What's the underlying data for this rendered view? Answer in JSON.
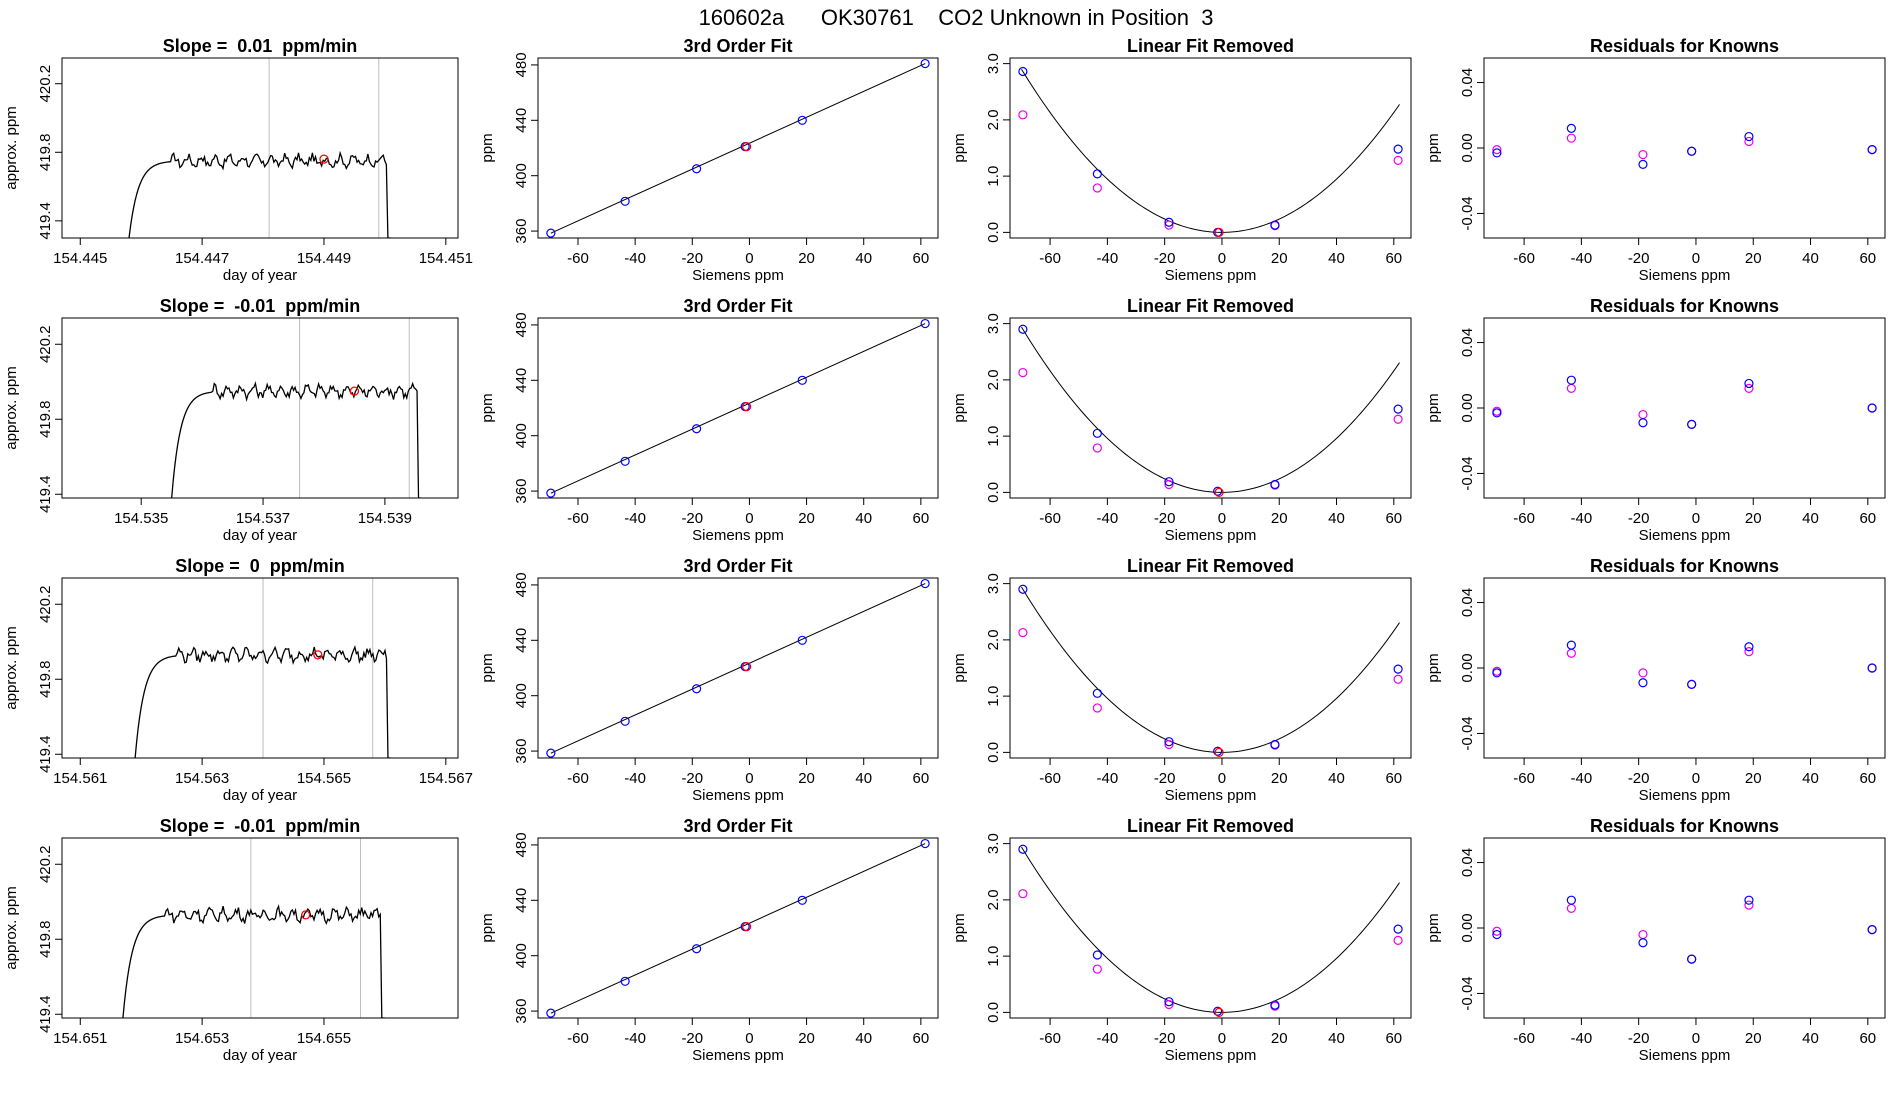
{
  "title": "160602a      OK30761    CO2 Unknown in Position  3",
  "colors": {
    "trace": "#000000",
    "gridline": "#bebebe",
    "marker_red": "#ff0000",
    "known_blue": "#0000ff",
    "known_magenta": "#ee00ee",
    "fit_line": "#000000"
  },
  "chart_data": [
    {
      "type": "line",
      "row": 1,
      "col": 1,
      "title": "Slope =  0.01  ppm/min",
      "xlabel": "day of year",
      "ylabel": "approx. ppm",
      "xlim": [
        154.4447,
        154.4512
      ],
      "ylim": [
        419.3,
        420.35
      ],
      "xticks": [
        154.445,
        154.447,
        154.449,
        154.451
      ],
      "xtick_labels": [
        "154.445",
        "154.447",
        "154.449",
        "154.451"
      ],
      "yticks": [
        419.4,
        419.8,
        420.2
      ],
      "ytick_labels": [
        "419.4",
        "419.8",
        "420.2"
      ],
      "vlines": [
        154.4481,
        154.4499
      ],
      "trace": {
        "start": 154.4458,
        "end": 154.4501,
        "plateau": 419.75,
        "floor": 419.3
      },
      "marker": {
        "x": 154.449,
        "y": 419.76
      }
    },
    {
      "type": "line",
      "row": 2,
      "col": 1,
      "title": "Slope =  -0.01  ppm/min",
      "xlabel": "day of year",
      "ylabel": "approx. ppm",
      "xlim": [
        154.5337,
        154.5402
      ],
      "ylim": [
        419.38,
        420.34
      ],
      "xticks": [
        154.535,
        154.537,
        154.539
      ],
      "xtick_labels": [
        "154.535",
        "154.537",
        "154.539"
      ],
      "yticks": [
        419.4,
        419.8,
        420.2
      ],
      "ytick_labels": [
        "419.4",
        "419.8",
        "420.2"
      ],
      "vlines": [
        154.5376,
        154.5394
      ],
      "trace": {
        "start": 154.5355,
        "end": 154.5396,
        "plateau": 419.95,
        "floor": 419.38
      },
      "marker": {
        "x": 154.5385,
        "y": 419.95
      }
    },
    {
      "type": "line",
      "row": 3,
      "col": 1,
      "title": "Slope =  0  ppm/min",
      "xlabel": "day of year",
      "ylabel": "approx. ppm",
      "xlim": [
        154.5607,
        154.5672
      ],
      "ylim": [
        419.38,
        420.34
      ],
      "xticks": [
        154.561,
        154.563,
        154.565,
        154.567
      ],
      "xtick_labels": [
        "154.561",
        "154.563",
        "154.565",
        "154.567"
      ],
      "yticks": [
        419.4,
        419.8,
        420.2
      ],
      "ytick_labels": [
        "419.4",
        "419.8",
        "420.2"
      ],
      "vlines": [
        154.564,
        154.5658
      ],
      "trace": {
        "start": 154.5619,
        "end": 154.5661,
        "plateau": 419.93,
        "floor": 419.38
      },
      "marker": {
        "x": 154.5649,
        "y": 419.93
      }
    },
    {
      "type": "line",
      "row": 4,
      "col": 1,
      "title": "Slope =  -0.01  ppm/min",
      "xlabel": "day of year",
      "ylabel": "approx. ppm",
      "xlim": [
        154.6507,
        154.6572
      ],
      "ylim": [
        419.38,
        420.34
      ],
      "xticks": [
        154.651,
        154.653,
        154.655
      ],
      "xtick_labels": [
        "154.651",
        "154.653",
        "154.655"
      ],
      "yticks": [
        419.4,
        419.8,
        420.2
      ],
      "ytick_labels": [
        "419.4",
        "419.8",
        "420.2"
      ],
      "vlines": [
        154.6538,
        154.6556
      ],
      "trace": {
        "start": 154.6517,
        "end": 154.656,
        "plateau": 419.93,
        "floor": 419.38
      },
      "marker": {
        "x": 154.6547,
        "y": 419.93
      }
    },
    {
      "type": "scatter",
      "row": 1,
      "col": 2,
      "title": "3rd Order Fit",
      "xlabel": "Siemens ppm",
      "ylabel": "ppm",
      "xlim": [
        -74,
        66
      ],
      "ylim": [
        355,
        485
      ],
      "xticks": [
        -60,
        -40,
        -20,
        0,
        20,
        40,
        60
      ],
      "xtick_labels": [
        "-60",
        "-40",
        "-20",
        "0",
        "20",
        "40",
        "60"
      ],
      "yticks": [
        360,
        400,
        440,
        480
      ],
      "ytick_labels": [
        "360",
        "400",
        "440",
        "480"
      ],
      "fit_line": {
        "from": [
          -69.5,
          358.5
        ],
        "to": [
          61.5,
          481.0
        ]
      },
      "known": {
        "x": [
          -69.5,
          -43.5,
          -18.5,
          -1.5,
          18.5,
          61.5
        ],
        "y": [
          358.5,
          381.5,
          405.0,
          421.0,
          440.0,
          481.0
        ]
      },
      "unknown": {
        "x": [
          -1.0
        ],
        "y": [
          421.0
        ]
      }
    },
    {
      "type": "scatter",
      "row": 2,
      "col": 2,
      "title": "3rd Order Fit",
      "xlabel": "Siemens ppm",
      "ylabel": "ppm",
      "xlim": [
        -74,
        66
      ],
      "ylim": [
        355,
        485
      ],
      "xticks": [
        -60,
        -40,
        -20,
        0,
        20,
        40,
        60
      ],
      "xtick_labels": [
        "-60",
        "-40",
        "-20",
        "0",
        "20",
        "40",
        "60"
      ],
      "yticks": [
        360,
        400,
        440,
        480
      ],
      "ytick_labels": [
        "360",
        "400",
        "440",
        "480"
      ],
      "fit_line": {
        "from": [
          -69.5,
          358.5
        ],
        "to": [
          61.5,
          481.0
        ]
      },
      "known": {
        "x": [
          -69.5,
          -43.5,
          -18.5,
          -1.5,
          18.5,
          61.5
        ],
        "y": [
          358.5,
          381.5,
          405.0,
          421.0,
          440.0,
          481.0
        ]
      },
      "unknown": {
        "x": [
          -1.0
        ],
        "y": [
          421.0
        ]
      }
    },
    {
      "type": "scatter",
      "row": 3,
      "col": 2,
      "title": "3rd Order Fit",
      "xlabel": "Siemens ppm",
      "ylabel": "ppm",
      "xlim": [
        -74,
        66
      ],
      "ylim": [
        355,
        485
      ],
      "xticks": [
        -60,
        -40,
        -20,
        0,
        20,
        40,
        60
      ],
      "xtick_labels": [
        "-60",
        "-40",
        "-20",
        "0",
        "20",
        "40",
        "60"
      ],
      "yticks": [
        360,
        400,
        440,
        480
      ],
      "ytick_labels": [
        "360",
        "400",
        "440",
        "480"
      ],
      "fit_line": {
        "from": [
          -69.5,
          358.5
        ],
        "to": [
          61.5,
          481.0
        ]
      },
      "known": {
        "x": [
          -69.5,
          -43.5,
          -18.5,
          -1.5,
          18.5,
          61.5
        ],
        "y": [
          358.5,
          381.5,
          405.0,
          421.0,
          440.0,
          481.0
        ]
      },
      "unknown": {
        "x": [
          -1.0
        ],
        "y": [
          421.0
        ]
      }
    },
    {
      "type": "scatter",
      "row": 4,
      "col": 2,
      "title": "3rd Order Fit",
      "xlabel": "Siemens ppm",
      "ylabel": "ppm",
      "xlim": [
        -74,
        66
      ],
      "ylim": [
        355,
        485
      ],
      "xticks": [
        -60,
        -40,
        -20,
        0,
        20,
        40,
        60
      ],
      "xtick_labels": [
        "-60",
        "-40",
        "-20",
        "0",
        "20",
        "40",
        "60"
      ],
      "yticks": [
        360,
        400,
        440,
        480
      ],
      "ytick_labels": [
        "360",
        "400",
        "440",
        "480"
      ],
      "fit_line": {
        "from": [
          -69.5,
          358.5
        ],
        "to": [
          61.5,
          481.0
        ]
      },
      "known": {
        "x": [
          -69.5,
          -43.5,
          -18.5,
          -1.5,
          18.5,
          61.5
        ],
        "y": [
          358.5,
          381.5,
          405.0,
          421.0,
          440.0,
          481.0
        ]
      },
      "unknown": {
        "x": [
          -1.0
        ],
        "y": [
          421.0
        ]
      }
    },
    {
      "type": "scatter",
      "row": 1,
      "col": 3,
      "title": "Linear Fit Removed",
      "xlabel": "Siemens ppm",
      "ylabel": "ppm",
      "xlim": [
        -74,
        66
      ],
      "ylim": [
        -0.1,
        3.1
      ],
      "xticks": [
        -60,
        -40,
        -20,
        0,
        20,
        40,
        60
      ],
      "xtick_labels": [
        "-60",
        "-40",
        "-20",
        "0",
        "20",
        "40",
        "60"
      ],
      "yticks": [
        0,
        1,
        2,
        3
      ],
      "ytick_labels": [
        "0.0",
        "1.0",
        "2.0",
        "3.0"
      ],
      "curve": {
        "a": 0.000592,
        "b": 0.0,
        "c": 0.0
      },
      "known": {
        "x": [
          -69.5,
          -43.5,
          -18.5,
          -1.5,
          18.5,
          61.5
        ],
        "y": [
          2.86,
          1.04,
          0.18,
          0.0,
          0.13,
          1.48
        ]
      },
      "magenta": {
        "x": [
          -69.5,
          -43.5,
          -18.5,
          18.5,
          61.5
        ],
        "y": [
          2.09,
          0.79,
          0.13,
          0.12,
          1.28
        ]
      },
      "unknown": {
        "x": [
          -1.0
        ],
        "y": [
          0.0
        ]
      }
    },
    {
      "type": "scatter",
      "row": 2,
      "col": 3,
      "title": "Linear Fit Removed",
      "xlabel": "Siemens ppm",
      "ylabel": "ppm",
      "xlim": [
        -74,
        66
      ],
      "ylim": [
        -0.1,
        3.1
      ],
      "xticks": [
        -60,
        -40,
        -20,
        0,
        20,
        40,
        60
      ],
      "xtick_labels": [
        "-60",
        "-40",
        "-20",
        "0",
        "20",
        "40",
        "60"
      ],
      "yticks": [
        0,
        1,
        2,
        3
      ],
      "ytick_labels": [
        "0.0",
        "1.0",
        "2.0",
        "3.0"
      ],
      "curve": {
        "a": 0.0006,
        "b": 0.0,
        "c": 0.0
      },
      "known": {
        "x": [
          -69.5,
          -43.5,
          -18.5,
          -1.5,
          18.5,
          61.5
        ],
        "y": [
          2.9,
          1.05,
          0.19,
          0.02,
          0.14,
          1.48
        ]
      },
      "magenta": {
        "x": [
          -69.5,
          -43.5,
          -18.5,
          18.5,
          61.5
        ],
        "y": [
          2.13,
          0.79,
          0.14,
          0.13,
          1.3
        ]
      },
      "unknown": {
        "x": [
          -1.0
        ],
        "y": [
          0.0
        ]
      }
    },
    {
      "type": "scatter",
      "row": 3,
      "col": 3,
      "title": "Linear Fit Removed",
      "xlabel": "Siemens ppm",
      "ylabel": "ppm",
      "xlim": [
        -74,
        66
      ],
      "ylim": [
        -0.1,
        3.1
      ],
      "xticks": [
        -60,
        -40,
        -20,
        0,
        20,
        40,
        60
      ],
      "xtick_labels": [
        "-60",
        "-40",
        "-20",
        "0",
        "20",
        "40",
        "60"
      ],
      "yticks": [
        0,
        1,
        2,
        3
      ],
      "ytick_labels": [
        "0.0",
        "1.0",
        "2.0",
        "3.0"
      ],
      "curve": {
        "a": 0.0006,
        "b": 0.0,
        "c": 0.0
      },
      "known": {
        "x": [
          -69.5,
          -43.5,
          -18.5,
          -1.5,
          18.5,
          61.5
        ],
        "y": [
          2.9,
          1.05,
          0.19,
          0.02,
          0.14,
          1.48
        ]
      },
      "magenta": {
        "x": [
          -69.5,
          -43.5,
          -18.5,
          18.5,
          61.5
        ],
        "y": [
          2.13,
          0.79,
          0.14,
          0.13,
          1.3
        ]
      },
      "unknown": {
        "x": [
          -1.0
        ],
        "y": [
          0.0
        ]
      }
    },
    {
      "type": "scatter",
      "row": 4,
      "col": 3,
      "title": "Linear Fit Removed",
      "xlabel": "Siemens ppm",
      "ylabel": "ppm",
      "xlim": [
        -74,
        66
      ],
      "ylim": [
        -0.1,
        3.1
      ],
      "xticks": [
        -60,
        -40,
        -20,
        0,
        20,
        40,
        60
      ],
      "xtick_labels": [
        "-60",
        "-40",
        "-20",
        "0",
        "20",
        "40",
        "60"
      ],
      "yticks": [
        0,
        1,
        2,
        3
      ],
      "ytick_labels": [
        "0.0",
        "1.0",
        "2.0",
        "3.0"
      ],
      "curve": {
        "a": 0.0006,
        "b": 0.0,
        "c": 0.0
      },
      "known": {
        "x": [
          -69.5,
          -43.5,
          -18.5,
          -1.5,
          18.5,
          61.5
        ],
        "y": [
          2.9,
          1.02,
          0.19,
          0.02,
          0.13,
          1.48
        ]
      },
      "magenta": {
        "x": [
          -69.5,
          -43.5,
          -18.5,
          18.5,
          61.5
        ],
        "y": [
          2.11,
          0.77,
          0.14,
          0.11,
          1.28
        ]
      },
      "unknown": {
        "x": [
          -1.0
        ],
        "y": [
          0.0
        ]
      }
    },
    {
      "type": "scatter",
      "row": 1,
      "col": 4,
      "title": "Residuals for Knowns",
      "xlabel": "Siemens ppm",
      "ylabel": "ppm",
      "xlim": [
        -74,
        66
      ],
      "ylim": [
        -0.055,
        0.055
      ],
      "xticks": [
        -60,
        -40,
        -20,
        0,
        20,
        40,
        60
      ],
      "xtick_labels": [
        "-60",
        "-40",
        "-20",
        "0",
        "20",
        "40",
        "60"
      ],
      "yticks": [
        -0.04,
        0.0,
        0.04
      ],
      "ytick_labels": [
        "-0.04",
        "0.00",
        "0.04"
      ],
      "known": {
        "x": [
          -69.5,
          -43.5,
          -18.5,
          -1.5,
          18.5,
          61.5
        ],
        "y": [
          -0.003,
          0.012,
          -0.01,
          -0.002,
          0.007,
          -0.001
        ]
      },
      "magenta": {
        "x": [
          -69.5,
          -43.5,
          -18.5,
          -1.5,
          18.5,
          61.5
        ],
        "y": [
          -0.001,
          0.006,
          -0.004,
          -0.002,
          0.004,
          -0.001
        ]
      }
    },
    {
      "type": "scatter",
      "row": 2,
      "col": 4,
      "title": "Residuals for Knowns",
      "xlabel": "Siemens ppm",
      "ylabel": "ppm",
      "xlim": [
        -74,
        66
      ],
      "ylim": [
        -0.055,
        0.055
      ],
      "xticks": [
        -60,
        -40,
        -20,
        0,
        20,
        40,
        60
      ],
      "xtick_labels": [
        "-60",
        "-40",
        "-20",
        "0",
        "20",
        "40",
        "60"
      ],
      "yticks": [
        -0.04,
        0.0,
        0.04
      ],
      "ytick_labels": [
        "-0.04",
        "0.00",
        "0.04"
      ],
      "known": {
        "x": [
          -69.5,
          -43.5,
          -18.5,
          -1.5,
          18.5,
          61.5
        ],
        "y": [
          -0.003,
          0.017,
          -0.009,
          -0.01,
          0.015,
          0.0
        ]
      },
      "magenta": {
        "x": [
          -69.5,
          -43.5,
          -18.5,
          -1.5,
          18.5,
          61.5
        ],
        "y": [
          -0.002,
          0.012,
          -0.004,
          -0.01,
          0.012,
          0.0
        ]
      }
    },
    {
      "type": "scatter",
      "row": 3,
      "col": 4,
      "title": "Residuals for Knowns",
      "xlabel": "Siemens ppm",
      "ylabel": "ppm",
      "xlim": [
        -74,
        66
      ],
      "ylim": [
        -0.055,
        0.055
      ],
      "xticks": [
        -60,
        -40,
        -20,
        0,
        20,
        40,
        60
      ],
      "xtick_labels": [
        "-60",
        "-40",
        "-20",
        "0",
        "20",
        "40",
        "60"
      ],
      "yticks": [
        -0.04,
        0.0,
        0.04
      ],
      "ytick_labels": [
        "-0.04",
        "0.00",
        "0.04"
      ],
      "known": {
        "x": [
          -69.5,
          -43.5,
          -18.5,
          -1.5,
          18.5,
          61.5
        ],
        "y": [
          -0.003,
          0.014,
          -0.009,
          -0.01,
          0.013,
          0.0
        ]
      },
      "magenta": {
        "x": [
          -69.5,
          -43.5,
          -18.5,
          -1.5,
          18.5,
          61.5
        ],
        "y": [
          -0.002,
          0.009,
          -0.003,
          -0.01,
          0.01,
          0.0
        ]
      }
    },
    {
      "type": "scatter",
      "row": 4,
      "col": 4,
      "title": "Residuals for Knowns",
      "xlabel": "Siemens ppm",
      "ylabel": "ppm",
      "xlim": [
        -74,
        66
      ],
      "ylim": [
        -0.055,
        0.055
      ],
      "xticks": [
        -60,
        -40,
        -20,
        0,
        20,
        40,
        60
      ],
      "xtick_labels": [
        "-60",
        "-40",
        "-20",
        "0",
        "20",
        "40",
        "60"
      ],
      "yticks": [
        -0.04,
        0.0,
        0.04
      ],
      "ytick_labels": [
        "-0.04",
        "0.00",
        "0.04"
      ],
      "known": {
        "x": [
          -69.5,
          -43.5,
          -18.5,
          -1.5,
          18.5,
          61.5
        ],
        "y": [
          -0.004,
          0.017,
          -0.009,
          -0.019,
          0.017,
          -0.001
        ]
      },
      "magenta": {
        "x": [
          -69.5,
          -43.5,
          -18.5,
          -1.5,
          18.5,
          61.5
        ],
        "y": [
          -0.002,
          0.012,
          -0.004,
          -0.019,
          0.014,
          -0.001
        ]
      }
    }
  ]
}
